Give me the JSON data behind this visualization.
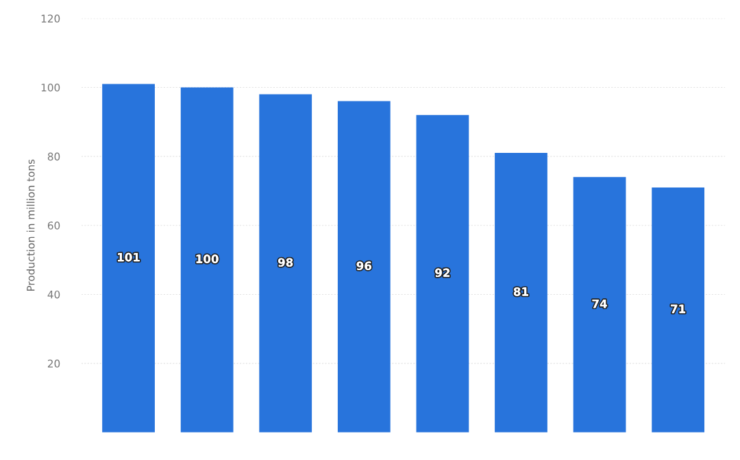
{
  "chart_data": {
    "type": "bar",
    "ylabel": "Production in million tons",
    "categories": [
      null,
      null,
      null,
      null,
      null,
      null,
      null,
      null
    ],
    "values": [
      101,
      100,
      98,
      96,
      92,
      81,
      74,
      71
    ],
    "color": "#2874dc",
    "ylim": [
      0,
      120
    ],
    "yticks": [
      20,
      40,
      60,
      80,
      100,
      120
    ],
    "grid": "y",
    "data_labels": true
  }
}
